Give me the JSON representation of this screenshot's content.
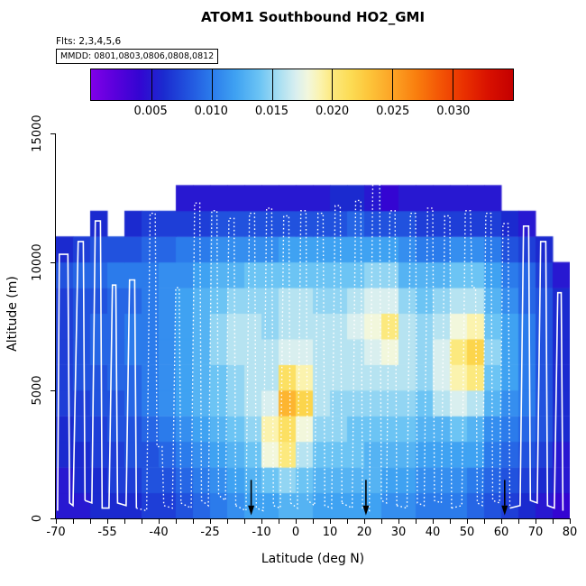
{
  "title": "ATOM1 Southbound HO2_GMI",
  "annotations": {
    "flights": "Flts: 2,3,4,5,6",
    "mmdd": "MMDD: 0801,0803,0806,0808,0812"
  },
  "axes": {
    "x": {
      "label": "Latitude (deg N)",
      "min": -70,
      "max": 80,
      "tick_step": 5,
      "labeled_ticks": [
        -70,
        -55,
        -40,
        -25,
        -10,
        0,
        10,
        20,
        30,
        40,
        50,
        60,
        70,
        80
      ]
    },
    "y": {
      "label": "Altitude (m)",
      "min": 0,
      "max": 16000,
      "labeled_ticks": [
        0,
        5000,
        10000,
        15000
      ]
    }
  },
  "colorbar": {
    "min": 0,
    "max": 0.035,
    "tick_values": [
      0.005,
      0.01,
      0.015,
      0.02,
      0.025,
      0.03
    ],
    "tick_labels": [
      "0.005",
      "0.010",
      "0.015",
      "0.020",
      "0.025",
      "0.030"
    ]
  },
  "chart_data": {
    "type": "heatmap",
    "title": "ATOM1 Southbound HO2_GMI",
    "xlabel": "Latitude (deg N)",
    "ylabel": "Altitude (m)",
    "x_range": [
      -70,
      80
    ],
    "y_range": [
      0,
      16000
    ],
    "x_bins": {
      "start": -70,
      "step": 5,
      "count": 30
    },
    "y_bins": {
      "start": 0,
      "step": 1000,
      "count": 13
    },
    "values": [
      [
        0.005,
        0.005,
        0.006,
        0.006,
        0.006,
        0.007,
        0.007,
        0.008,
        0.009,
        0.01,
        0.011,
        0.012,
        0.012,
        0.013,
        0.013,
        0.012,
        0.012,
        0.012,
        0.012,
        0.011,
        0.011,
        0.01,
        0.01,
        0.01,
        0.009,
        0.008,
        0.007,
        0.006,
        0.005,
        0.004
      ],
      [
        0.005,
        0.006,
        0.006,
        0.007,
        0.007,
        0.008,
        0.008,
        0.009,
        0.01,
        0.011,
        0.012,
        0.013,
        0.014,
        0.015,
        0.014,
        0.013,
        0.013,
        0.013,
        0.013,
        0.012,
        0.012,
        0.011,
        0.011,
        0.011,
        0.01,
        0.009,
        0.008,
        0.007,
        0.006,
        0.005
      ],
      [
        0.006,
        0.006,
        0.007,
        0.007,
        0.008,
        0.008,
        0.009,
        0.01,
        0.011,
        0.012,
        0.013,
        0.014,
        0.018,
        0.02,
        0.016,
        0.014,
        0.014,
        0.014,
        0.013,
        0.013,
        0.013,
        0.012,
        0.012,
        0.012,
        0.012,
        0.01,
        0.009,
        0.008,
        0.007,
        0.005
      ],
      [
        0.006,
        0.007,
        0.007,
        0.008,
        0.008,
        0.009,
        0.01,
        0.011,
        0.012,
        0.013,
        0.014,
        0.015,
        0.019,
        0.021,
        0.018,
        0.015,
        0.015,
        0.014,
        0.014,
        0.014,
        0.014,
        0.013,
        0.013,
        0.014,
        0.013,
        0.011,
        0.01,
        0.009,
        0.008,
        0.006
      ],
      [
        0.007,
        0.007,
        0.008,
        0.008,
        0.009,
        0.01,
        0.011,
        0.012,
        0.013,
        0.014,
        0.015,
        0.016,
        0.017,
        0.024,
        0.022,
        0.016,
        0.015,
        0.015,
        0.015,
        0.015,
        0.015,
        0.014,
        0.016,
        0.017,
        0.016,
        0.013,
        0.011,
        0.01,
        0.008,
        0.006
      ],
      [
        0.007,
        0.008,
        0.008,
        0.009,
        0.009,
        0.01,
        0.011,
        0.012,
        0.013,
        0.014,
        0.015,
        0.016,
        0.016,
        0.021,
        0.019,
        0.016,
        0.016,
        0.016,
        0.016,
        0.016,
        0.016,
        0.015,
        0.017,
        0.019,
        0.02,
        0.014,
        0.012,
        0.01,
        0.008,
        0.006
      ],
      [
        0.007,
        0.008,
        0.009,
        0.009,
        0.01,
        0.01,
        0.011,
        0.012,
        0.013,
        0.015,
        0.016,
        0.016,
        0.016,
        0.017,
        0.017,
        0.016,
        0.016,
        0.016,
        0.017,
        0.018,
        0.016,
        0.015,
        0.017,
        0.02,
        0.022,
        0.015,
        0.012,
        0.01,
        0.008,
        0.006
      ],
      [
        0.007,
        0.008,
        0.009,
        0.009,
        0.01,
        0.01,
        0.011,
        0.012,
        0.013,
        0.015,
        0.016,
        0.016,
        0.015,
        0.016,
        0.016,
        0.016,
        0.016,
        0.017,
        0.018,
        0.02,
        0.016,
        0.015,
        0.016,
        0.018,
        0.019,
        0.014,
        0.012,
        0.01,
        0.008,
        0.006
      ],
      [
        0.007,
        0.008,
        0.008,
        0.009,
        0.009,
        0.01,
        0.011,
        0.012,
        0.013,
        0.014,
        0.015,
        0.015,
        0.015,
        0.016,
        0.016,
        0.015,
        0.015,
        0.016,
        0.017,
        0.017,
        0.015,
        0.014,
        0.015,
        0.016,
        0.016,
        0.013,
        0.011,
        0.009,
        0.008,
        0.006
      ],
      [
        0.008,
        0.009,
        0.009,
        0.01,
        0.01,
        0.01,
        0.011,
        0.011,
        0.012,
        0.013,
        0.013,
        0.014,
        0.014,
        0.014,
        0.014,
        0.014,
        0.014,
        0.014,
        0.015,
        0.015,
        0.013,
        0.013,
        0.013,
        0.014,
        0.014,
        0.012,
        0.01,
        0.009,
        0.007,
        0.005
      ],
      [
        0.006,
        0.007,
        0.008,
        0.008,
        0.008,
        0.009,
        0.009,
        0.01,
        0.01,
        0.011,
        0.011,
        0.011,
        0.011,
        0.012,
        0.012,
        0.012,
        0.012,
        0.012,
        0.012,
        0.012,
        0.011,
        0.01,
        0.01,
        0.011,
        0.011,
        0.01,
        0.008,
        0.007,
        0.006,
        null
      ],
      [
        null,
        null,
        0.006,
        null,
        0.006,
        0.007,
        0.007,
        0.007,
        0.007,
        0.008,
        0.008,
        0.008,
        0.008,
        0.008,
        0.008,
        0.008,
        0.008,
        0.009,
        0.008,
        0.008,
        0.008,
        0.007,
        0.007,
        0.007,
        0.007,
        0.007,
        0.006,
        0.005,
        null,
        null
      ],
      [
        null,
        null,
        null,
        null,
        null,
        null,
        null,
        0.005,
        0.005,
        0.005,
        0.005,
        0.005,
        0.005,
        0.005,
        0.005,
        0.005,
        0.006,
        0.006,
        0.005,
        0.004,
        0.005,
        0.005,
        0.005,
        0.005,
        0.005,
        0.005,
        null,
        null,
        null,
        null
      ]
    ],
    "color_scale": [
      {
        "v": 0.0,
        "c": "#8000E8"
      },
      {
        "v": 0.002,
        "c": "#5A00DC"
      },
      {
        "v": 0.004,
        "c": "#3405D2"
      },
      {
        "v": 0.006,
        "c": "#1B2ACF"
      },
      {
        "v": 0.008,
        "c": "#2152DE"
      },
      {
        "v": 0.01,
        "c": "#2B7BEB"
      },
      {
        "v": 0.012,
        "c": "#3FA2F2"
      },
      {
        "v": 0.014,
        "c": "#6CC4F4"
      },
      {
        "v": 0.0155,
        "c": "#A5DDF2"
      },
      {
        "v": 0.017,
        "c": "#D9EFEF"
      },
      {
        "v": 0.018,
        "c": "#F2F7DC"
      },
      {
        "v": 0.019,
        "c": "#FBF3AE"
      },
      {
        "v": 0.02,
        "c": "#FCE97E"
      },
      {
        "v": 0.0215,
        "c": "#FCDC55"
      },
      {
        "v": 0.023,
        "c": "#FDC63B"
      },
      {
        "v": 0.025,
        "c": "#FCA325"
      },
      {
        "v": 0.027,
        "c": "#F97E0E"
      },
      {
        "v": 0.029,
        "c": "#F35405"
      },
      {
        "v": 0.031,
        "c": "#E92F00"
      },
      {
        "v": 0.033,
        "c": "#D81000"
      },
      {
        "v": 0.035,
        "c": "#C40000"
      }
    ],
    "flight_tracks": [
      {
        "style": "solid",
        "points": [
          [
            -69.5,
            300
          ],
          [
            -69,
            10300
          ],
          [
            -66.5,
            10300
          ],
          [
            -66,
            600
          ],
          [
            -65,
            500
          ],
          [
            -63.5,
            10800
          ],
          [
            -62,
            10800
          ],
          [
            -61.5,
            700
          ]
        ]
      },
      {
        "style": "solid",
        "points": [
          [
            -61.5,
            700
          ],
          [
            -59.5,
            600
          ],
          [
            -58.5,
            11600
          ],
          [
            -57,
            11600
          ],
          [
            -56.5,
            400
          ],
          [
            -54.5,
            400
          ],
          [
            -53.5,
            9100
          ],
          [
            -52.5,
            9100
          ],
          [
            -52,
            600
          ],
          [
            -49.5,
            500
          ],
          [
            -48.5,
            9300
          ],
          [
            -47,
            9300
          ],
          [
            -46.5,
            400
          ]
        ]
      },
      {
        "style": "dotted",
        "points": [
          [
            -46.5,
            400
          ],
          [
            -43.5,
            300
          ],
          [
            -42.5,
            11900
          ],
          [
            -41,
            11900
          ],
          [
            -40.5,
            2800
          ],
          [
            -39,
            2800
          ],
          [
            -38.5,
            500
          ],
          [
            -36,
            400
          ],
          [
            -35,
            9000
          ],
          [
            -34,
            9000
          ],
          [
            -33.5,
            600
          ]
        ]
      },
      {
        "style": "dotted",
        "points": [
          [
            -33.5,
            600
          ],
          [
            -30.5,
            400
          ],
          [
            -29.5,
            12300
          ],
          [
            -28,
            12300
          ],
          [
            -27.5,
            700
          ],
          [
            -25.5,
            500
          ],
          [
            -24.5,
            12000
          ],
          [
            -23,
            12000
          ],
          [
            -22.5,
            900
          ],
          [
            -20.5,
            700
          ],
          [
            -19.5,
            11700
          ],
          [
            -18,
            11700
          ],
          [
            -17.5,
            500
          ]
        ]
      },
      {
        "style": "dotted",
        "points": [
          [
            -17.5,
            500
          ],
          [
            -14.5,
            300
          ],
          [
            -13.5,
            11900
          ],
          [
            -12,
            11900
          ],
          [
            -11.5,
            400
          ],
          [
            -9.5,
            300
          ],
          [
            -8.5,
            12100
          ],
          [
            -7,
            12100
          ],
          [
            -6.5,
            500
          ],
          [
            -4.5,
            400
          ],
          [
            -3.5,
            11800
          ],
          [
            -2,
            11800
          ],
          [
            -1.5,
            600
          ]
        ]
      },
      {
        "style": "dotted",
        "points": [
          [
            -1.5,
            600
          ],
          [
            0.5,
            400
          ],
          [
            1.5,
            12000
          ],
          [
            3,
            12000
          ],
          [
            3.5,
            700
          ],
          [
            5.5,
            500
          ],
          [
            6.5,
            11900
          ],
          [
            8,
            11900
          ],
          [
            8.5,
            500
          ],
          [
            10.5,
            400
          ],
          [
            11.5,
            12200
          ],
          [
            13,
            12200
          ],
          [
            13.5,
            600
          ]
        ]
      },
      {
        "style": "dotted",
        "points": [
          [
            13.5,
            600
          ],
          [
            16.5,
            400
          ],
          [
            17.5,
            12400
          ],
          [
            19,
            12400
          ],
          [
            19.5,
            400
          ],
          [
            21.5,
            300
          ],
          [
            22.5,
            13100
          ],
          [
            24.5,
            13100
          ],
          [
            25,
            700
          ],
          [
            26.5,
            600
          ],
          [
            27.5,
            12000
          ],
          [
            29,
            12000
          ],
          [
            29.5,
            500
          ]
        ]
      },
      {
        "style": "dotted",
        "points": [
          [
            29.5,
            500
          ],
          [
            32.5,
            400
          ],
          [
            33.5,
            11900
          ],
          [
            35,
            11900
          ],
          [
            35.5,
            600
          ],
          [
            37.5,
            500
          ],
          [
            38.5,
            12100
          ],
          [
            40,
            12100
          ],
          [
            40.5,
            700
          ],
          [
            42.5,
            600
          ],
          [
            43.5,
            11800
          ],
          [
            45,
            11800
          ],
          [
            45.5,
            400
          ]
        ]
      },
      {
        "style": "dotted",
        "points": [
          [
            45.5,
            400
          ],
          [
            48.5,
            500
          ],
          [
            49.5,
            12000
          ],
          [
            51,
            12000
          ],
          [
            51.5,
            9000
          ],
          [
            52.5,
            9000
          ],
          [
            53,
            600
          ],
          [
            54.5,
            500
          ],
          [
            55.5,
            11900
          ],
          [
            57,
            11900
          ],
          [
            57.5,
            700
          ],
          [
            59.5,
            600
          ],
          [
            60.5,
            11500
          ],
          [
            62,
            11500
          ],
          [
            62.5,
            400
          ]
        ]
      },
      {
        "style": "solid",
        "points": [
          [
            62.5,
            400
          ],
          [
            65.5,
            500
          ],
          [
            66.5,
            11400
          ],
          [
            68,
            11400
          ],
          [
            68.5,
            700
          ],
          [
            70.5,
            600
          ],
          [
            71.5,
            10800
          ],
          [
            73,
            10800
          ],
          [
            73.5,
            500
          ],
          [
            75.5,
            400
          ],
          [
            76.5,
            8800
          ],
          [
            77.5,
            8800
          ],
          [
            78,
            300
          ]
        ]
      }
    ],
    "arrows_lat": [
      -13,
      20.5,
      61
    ]
  }
}
